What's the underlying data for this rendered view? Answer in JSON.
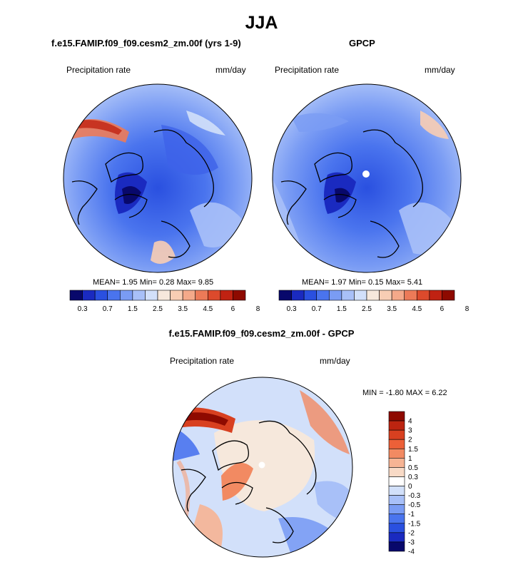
{
  "title": "JJA",
  "colors": {
    "coast": "#000000",
    "scale_full": [
      "#08086b",
      "#1a2ac0",
      "#2a50e0",
      "#4a74ee",
      "#7a9cf4",
      "#a8c0f8",
      "#d2e0fa",
      "#f6e8dc",
      "#f8cdb4",
      "#f4a98a",
      "#ec7a58",
      "#dc4a2c",
      "#c02212",
      "#8e0a00"
    ],
    "scale_diff": [
      "#8e0a00",
      "#bc2410",
      "#d84020",
      "#ec6038",
      "#f28a62",
      "#f6b494",
      "#f8dac6",
      "#ffffff",
      "#d2e0fa",
      "#a8c0f8",
      "#7a9cf4",
      "#4a74ee",
      "#2a50e0",
      "#1a2ac0",
      "#08086b"
    ]
  },
  "chart_data": [
    {
      "type": "heatmap",
      "title": "f.e15.FAMIP.f09_f09.cesm2_zm.00f (yrs 1-9)",
      "field_label": "Precipitation rate",
      "units": "mm/day",
      "projection": "north polar stereographic",
      "stats": {
        "mean_label": "MEAN=",
        "mean": "1.95",
        "min_label": "Min=",
        "min": "0.28",
        "max_label": "Max=",
        "max": "9.85"
      },
      "colorbar": {
        "orientation": "horizontal",
        "levels": [
          "0.3",
          "0.7",
          "1.5",
          "2.5",
          "3.5",
          "4.5",
          "6",
          "8"
        ]
      }
    },
    {
      "type": "heatmap",
      "title": "GPCP",
      "field_label": "Precipitation rate",
      "units": "mm/day",
      "projection": "north polar stereographic",
      "stats": {
        "mean_label": "MEAN=",
        "mean": "1.97",
        "min_label": "Min=",
        "min": "0.15",
        "max_label": "Max=",
        "max": "5.41"
      },
      "colorbar": {
        "orientation": "horizontal",
        "levels": [
          "0.3",
          "0.7",
          "1.5",
          "2.5",
          "3.5",
          "4.5",
          "6",
          "8"
        ]
      }
    },
    {
      "type": "heatmap",
      "title": "f.e15.FAMIP.f09_f09.cesm2_zm.00f - GPCP",
      "field_label": "Precipitation rate",
      "units": "mm/day",
      "projection": "north polar stereographic",
      "stats_text": "MIN = -1.80 MAX = 6.22",
      "colorbar": {
        "orientation": "vertical",
        "levels": [
          "4",
          "3",
          "2",
          "1.5",
          "1",
          "0.5",
          "0.3",
          "0",
          "-0.3",
          "-0.5",
          "-1",
          "-1.5",
          "-2",
          "-3",
          "-4"
        ]
      }
    }
  ]
}
